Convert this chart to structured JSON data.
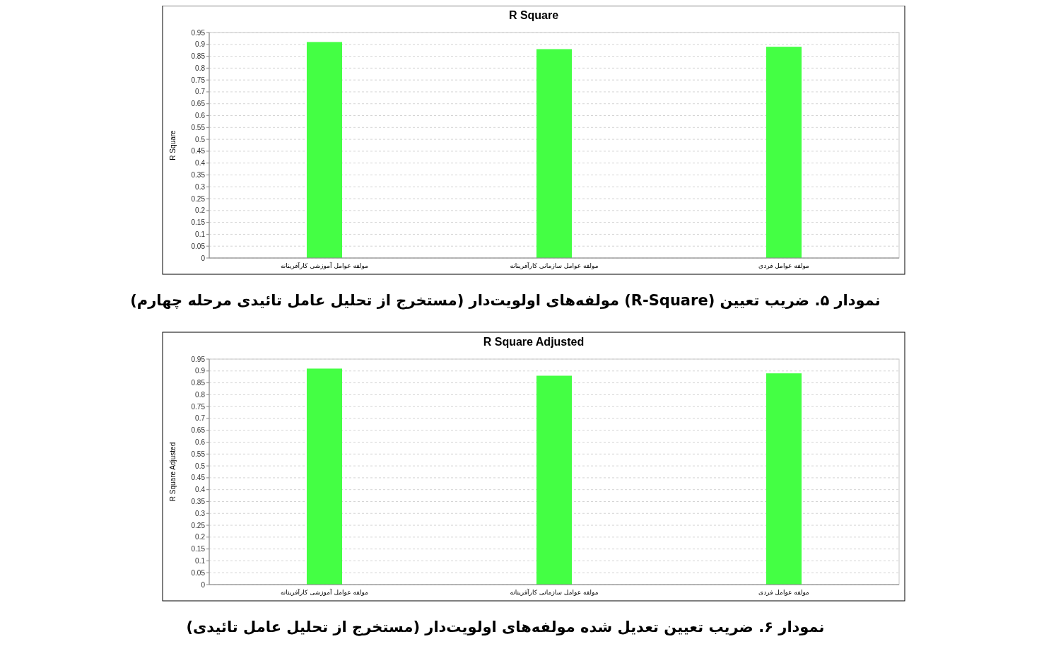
{
  "chart_data": [
    {
      "type": "bar",
      "title": "R Square",
      "ylabel": "R Square",
      "categories": [
        "مولفه  عوامل آموزشی کارآفرینانه",
        "مولفه  عوامل سازمانی کارآفرینانه",
        "مولفه  عوامل فردی"
      ],
      "values": [
        0.91,
        0.88,
        0.89
      ],
      "color": "#44ff44",
      "ylim": [
        0,
        0.95
      ],
      "yticks": [
        0,
        0.05,
        0.1,
        0.15,
        0.2,
        0.25,
        0.3,
        0.35,
        0.4,
        0.45,
        0.5,
        0.55,
        0.6,
        0.65,
        0.7,
        0.75,
        0.8,
        0.85,
        0.9,
        0.95
      ],
      "grid": "y",
      "annotations": [
        "نمودار ۵. ضریب تعیین (R-Square) مولفه‌های اولویت‌دار (مستخرج از تحلیل عامل تائیدی مرحله چهارم)"
      ]
    },
    {
      "type": "bar",
      "title": "R Square Adjusted",
      "ylabel": "R Square Adjusted",
      "categories": [
        "مولفه  عوامل آموزشی کارآفرینانه",
        "مولفه  عوامل سازمانی کارآفرینانه",
        "مولفه  عوامل فردی"
      ],
      "values": [
        0.91,
        0.88,
        0.89
      ],
      "color": "#44ff44",
      "ylim": [
        0,
        0.95
      ],
      "yticks": [
        0,
        0.05,
        0.1,
        0.15,
        0.2,
        0.25,
        0.3,
        0.35,
        0.4,
        0.45,
        0.5,
        0.55,
        0.6,
        0.65,
        0.7,
        0.75,
        0.8,
        0.85,
        0.9,
        0.95
      ],
      "grid": "y",
      "annotations": [
        "نمودار ۶. ضریب تعیین تعدیل شده مولفه‌های اولویت‌دار (مستخرج از تحلیل عامل تائیدی)"
      ]
    }
  ]
}
